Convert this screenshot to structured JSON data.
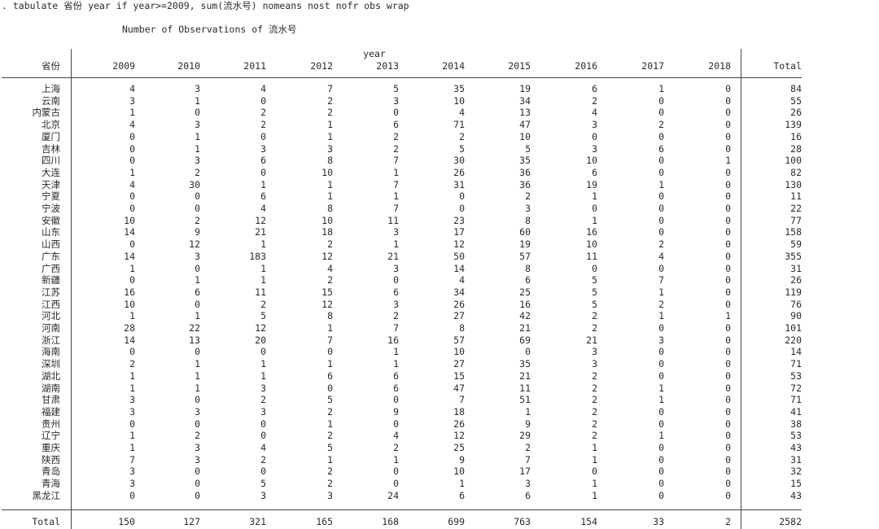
{
  "command": ". tabulate 省份 year if year>=2009, sum(流水号) nomeans nost nofr obs wrap",
  "subtitle": "Number of Observations of 流水号",
  "col_var": "year",
  "row_var": "省份",
  "years": [
    "2009",
    "2010",
    "2011",
    "2012",
    "2013",
    "2014",
    "2015",
    "2016",
    "2017",
    "2018"
  ],
  "total_label": "Total",
  "rows": [
    {
      "name": "上海",
      "vals": [
        "4",
        "3",
        "4",
        "7",
        "5",
        "35",
        "19",
        "6",
        "1",
        "0"
      ],
      "total": "84"
    },
    {
      "name": "云南",
      "vals": [
        "3",
        "1",
        "0",
        "2",
        "3",
        "10",
        "34",
        "2",
        "0",
        "0"
      ],
      "total": "55"
    },
    {
      "name": "内蒙古",
      "vals": [
        "1",
        "0",
        "2",
        "2",
        "0",
        "4",
        "13",
        "4",
        "0",
        "0"
      ],
      "total": "26"
    },
    {
      "name": "北京",
      "vals": [
        "4",
        "3",
        "2",
        "1",
        "6",
        "71",
        "47",
        "3",
        "2",
        "0"
      ],
      "total": "139"
    },
    {
      "name": "厦门",
      "vals": [
        "0",
        "1",
        "0",
        "1",
        "2",
        "2",
        "10",
        "0",
        "0",
        "0"
      ],
      "total": "16"
    },
    {
      "name": "吉林",
      "vals": [
        "0",
        "1",
        "3",
        "3",
        "2",
        "5",
        "5",
        "3",
        "6",
        "0"
      ],
      "total": "28"
    },
    {
      "name": "四川",
      "vals": [
        "0",
        "3",
        "6",
        "8",
        "7",
        "30",
        "35",
        "10",
        "0",
        "1"
      ],
      "total": "100"
    },
    {
      "name": "大连",
      "vals": [
        "1",
        "2",
        "0",
        "10",
        "1",
        "26",
        "36",
        "6",
        "0",
        "0"
      ],
      "total": "82"
    },
    {
      "name": "天津",
      "vals": [
        "4",
        "30",
        "1",
        "1",
        "7",
        "31",
        "36",
        "19",
        "1",
        "0"
      ],
      "total": "130"
    },
    {
      "name": "宁夏",
      "vals": [
        "0",
        "0",
        "6",
        "1",
        "1",
        "0",
        "2",
        "1",
        "0",
        "0"
      ],
      "total": "11"
    },
    {
      "name": "宁波",
      "vals": [
        "0",
        "0",
        "4",
        "8",
        "7",
        "0",
        "3",
        "0",
        "0",
        "0"
      ],
      "total": "22"
    },
    {
      "name": "安徽",
      "vals": [
        "10",
        "2",
        "12",
        "10",
        "11",
        "23",
        "8",
        "1",
        "0",
        "0"
      ],
      "total": "77"
    },
    {
      "name": "山东",
      "vals": [
        "14",
        "9",
        "21",
        "18",
        "3",
        "17",
        "60",
        "16",
        "0",
        "0"
      ],
      "total": "158"
    },
    {
      "name": "山西",
      "vals": [
        "0",
        "12",
        "1",
        "2",
        "1",
        "12",
        "19",
        "10",
        "2",
        "0"
      ],
      "total": "59"
    },
    {
      "name": "广东",
      "vals": [
        "14",
        "3",
        "183",
        "12",
        "21",
        "50",
        "57",
        "11",
        "4",
        "0"
      ],
      "total": "355"
    },
    {
      "name": "广西",
      "vals": [
        "1",
        "0",
        "1",
        "4",
        "3",
        "14",
        "8",
        "0",
        "0",
        "0"
      ],
      "total": "31"
    },
    {
      "name": "新疆",
      "vals": [
        "0",
        "1",
        "1",
        "2",
        "0",
        "4",
        "6",
        "5",
        "7",
        "0"
      ],
      "total": "26"
    },
    {
      "name": "江苏",
      "vals": [
        "16",
        "6",
        "11",
        "15",
        "6",
        "34",
        "25",
        "5",
        "1",
        "0"
      ],
      "total": "119"
    },
    {
      "name": "江西",
      "vals": [
        "10",
        "0",
        "2",
        "12",
        "3",
        "26",
        "16",
        "5",
        "2",
        "0"
      ],
      "total": "76"
    },
    {
      "name": "河北",
      "vals": [
        "1",
        "1",
        "5",
        "8",
        "2",
        "27",
        "42",
        "2",
        "1",
        "1"
      ],
      "total": "90"
    },
    {
      "name": "河南",
      "vals": [
        "28",
        "22",
        "12",
        "1",
        "7",
        "8",
        "21",
        "2",
        "0",
        "0"
      ],
      "total": "101"
    },
    {
      "name": "浙江",
      "vals": [
        "14",
        "13",
        "20",
        "7",
        "16",
        "57",
        "69",
        "21",
        "3",
        "0"
      ],
      "total": "220"
    },
    {
      "name": "海南",
      "vals": [
        "0",
        "0",
        "0",
        "0",
        "1",
        "10",
        "0",
        "3",
        "0",
        "0"
      ],
      "total": "14"
    },
    {
      "name": "深圳",
      "vals": [
        "2",
        "1",
        "1",
        "1",
        "1",
        "27",
        "35",
        "3",
        "0",
        "0"
      ],
      "total": "71"
    },
    {
      "name": "湖北",
      "vals": [
        "1",
        "1",
        "1",
        "6",
        "6",
        "15",
        "21",
        "2",
        "0",
        "0"
      ],
      "total": "53"
    },
    {
      "name": "湖南",
      "vals": [
        "1",
        "1",
        "3",
        "0",
        "6",
        "47",
        "11",
        "2",
        "1",
        "0"
      ],
      "total": "72"
    },
    {
      "name": "甘肃",
      "vals": [
        "3",
        "0",
        "2",
        "5",
        "0",
        "7",
        "51",
        "2",
        "1",
        "0"
      ],
      "total": "71"
    },
    {
      "name": "福建",
      "vals": [
        "3",
        "3",
        "3",
        "2",
        "9",
        "18",
        "1",
        "2",
        "0",
        "0"
      ],
      "total": "41"
    },
    {
      "name": "贵州",
      "vals": [
        "0",
        "0",
        "0",
        "1",
        "0",
        "26",
        "9",
        "2",
        "0",
        "0"
      ],
      "total": "38"
    },
    {
      "name": "辽宁",
      "vals": [
        "1",
        "2",
        "0",
        "2",
        "4",
        "12",
        "29",
        "2",
        "1",
        "0"
      ],
      "total": "53"
    },
    {
      "name": "重庆",
      "vals": [
        "1",
        "3",
        "4",
        "5",
        "2",
        "25",
        "2",
        "1",
        "0",
        "0"
      ],
      "total": "43"
    },
    {
      "name": "陕西",
      "vals": [
        "7",
        "3",
        "2",
        "1",
        "1",
        "9",
        "7",
        "1",
        "0",
        "0"
      ],
      "total": "31"
    },
    {
      "name": "青岛",
      "vals": [
        "3",
        "0",
        "0",
        "2",
        "0",
        "10",
        "17",
        "0",
        "0",
        "0"
      ],
      "total": "32"
    },
    {
      "name": "青海",
      "vals": [
        "3",
        "0",
        "5",
        "2",
        "0",
        "1",
        "3",
        "1",
        "0",
        "0"
      ],
      "total": "15"
    },
    {
      "name": "黑龙江",
      "vals": [
        "0",
        "0",
        "3",
        "3",
        "24",
        "6",
        "6",
        "1",
        "0",
        "0"
      ],
      "total": "43"
    }
  ],
  "totals": {
    "label": "Total",
    "vals": [
      "150",
      "127",
      "321",
      "165",
      "168",
      "699",
      "763",
      "154",
      "33",
      "2"
    ],
    "total": "2582"
  }
}
